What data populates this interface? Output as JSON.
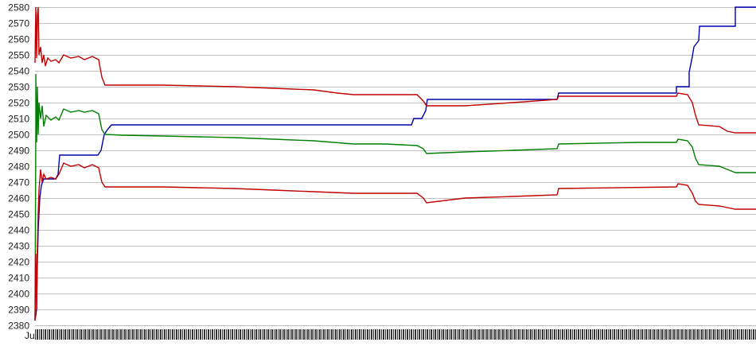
{
  "chart_data": {
    "type": "line",
    "title": "",
    "xlabel": "",
    "ylabel": "",
    "ylim": [
      2380,
      2580
    ],
    "y_ticks": [
      2380,
      2390,
      2400,
      2410,
      2420,
      2430,
      2440,
      2450,
      2460,
      2470,
      2480,
      2490,
      2500,
      2510,
      2520,
      2530,
      2540,
      2550,
      2560,
      2570,
      2580
    ],
    "x_first_tick_label": "Ju",
    "x_tick_labels_note_visible": "dense overlapping date labels (illegible)",
    "grid": "horizontal",
    "legend": "none",
    "series": [
      {
        "color": "#0000b0",
        "points": [
          [
            0,
            2383
          ],
          [
            2,
            2390
          ],
          [
            3,
            2420
          ],
          [
            4,
            2440
          ],
          [
            6,
            2460
          ],
          [
            8,
            2468
          ],
          [
            11,
            2472
          ],
          [
            26,
            2472
          ],
          [
            29,
            2475
          ],
          [
            31,
            2487
          ],
          [
            79,
            2487
          ],
          [
            83,
            2490
          ],
          [
            87,
            2500
          ],
          [
            91,
            2503
          ],
          [
            96,
            2506
          ],
          [
            473,
            2506
          ],
          [
            476,
            2510
          ],
          [
            486,
            2510
          ],
          [
            491,
            2515
          ],
          [
            493,
            2522
          ],
          [
            656,
            2522
          ],
          [
            658,
            2526
          ],
          [
            806,
            2526
          ],
          [
            806,
            2530
          ],
          [
            822,
            2530
          ],
          [
            822,
            2539
          ],
          [
            826,
            2549
          ],
          [
            828,
            2555
          ],
          [
            834,
            2559
          ],
          [
            835,
            2568
          ],
          [
            880,
            2568
          ],
          [
            880,
            2580
          ],
          [
            906,
            2580
          ]
        ]
      },
      {
        "color": "#007f00",
        "points": [
          [
            0,
            2383
          ],
          [
            1,
            2505
          ],
          [
            1,
            2538
          ],
          [
            2,
            2495
          ],
          [
            3,
            2530
          ],
          [
            4,
            2500
          ],
          [
            5,
            2520
          ],
          [
            7,
            2510
          ],
          [
            9,
            2518
          ],
          [
            11,
            2505
          ],
          [
            14,
            2512
          ],
          [
            20,
            2509
          ],
          [
            26,
            2511
          ],
          [
            30,
            2509
          ],
          [
            36,
            2516
          ],
          [
            45,
            2514
          ],
          [
            55,
            2515
          ],
          [
            62,
            2514
          ],
          [
            72,
            2515
          ],
          [
            80,
            2513
          ],
          [
            84,
            2503
          ],
          [
            88,
            2500
          ],
          [
            110,
            2499.5
          ],
          [
            160,
            2499
          ],
          [
            250,
            2498
          ],
          [
            300,
            2497
          ],
          [
            350,
            2496
          ],
          [
            400,
            2494
          ],
          [
            440,
            2494
          ],
          [
            480,
            2493
          ],
          [
            488,
            2491
          ],
          [
            492,
            2488
          ],
          [
            540,
            2489
          ],
          [
            600,
            2490
          ],
          [
            656,
            2491
          ],
          [
            658,
            2494
          ],
          [
            760,
            2495
          ],
          [
            806,
            2495
          ],
          [
            808,
            2497
          ],
          [
            820,
            2496
          ],
          [
            826,
            2492
          ],
          [
            830,
            2485
          ],
          [
            834,
            2481
          ],
          [
            860,
            2480
          ],
          [
            870,
            2478
          ],
          [
            880,
            2476
          ],
          [
            906,
            2476
          ]
        ]
      },
      {
        "color": "#c00000",
        "points": [
          [
            0,
            2545
          ],
          [
            1,
            2580
          ],
          [
            2,
            2548
          ],
          [
            3,
            2575
          ],
          [
            4,
            2580
          ],
          [
            5,
            2550
          ],
          [
            7,
            2555
          ],
          [
            9,
            2545
          ],
          [
            11,
            2550
          ],
          [
            13,
            2543
          ],
          [
            16,
            2548
          ],
          [
            20,
            2546
          ],
          [
            26,
            2547
          ],
          [
            30,
            2545
          ],
          [
            36,
            2550
          ],
          [
            45,
            2548
          ],
          [
            55,
            2549
          ],
          [
            62,
            2547
          ],
          [
            72,
            2549
          ],
          [
            80,
            2547
          ],
          [
            84,
            2536
          ],
          [
            88,
            2531
          ],
          [
            110,
            2531
          ],
          [
            160,
            2531
          ],
          [
            250,
            2530
          ],
          [
            300,
            2529
          ],
          [
            350,
            2528
          ],
          [
            380,
            2526
          ],
          [
            400,
            2525
          ],
          [
            480,
            2525
          ],
          [
            488,
            2521
          ],
          [
            492,
            2518
          ],
          [
            540,
            2518
          ],
          [
            600,
            2520
          ],
          [
            656,
            2522
          ],
          [
            658,
            2524
          ],
          [
            806,
            2524
          ],
          [
            808,
            2526
          ],
          [
            820,
            2525
          ],
          [
            826,
            2520
          ],
          [
            830,
            2512
          ],
          [
            834,
            2506
          ],
          [
            860,
            2505
          ],
          [
            870,
            2502
          ],
          [
            880,
            2501
          ],
          [
            906,
            2501
          ]
        ]
      },
      {
        "color": "#c00000",
        "points": [
          [
            0,
            2383
          ],
          [
            1,
            2425
          ],
          [
            2,
            2390
          ],
          [
            3,
            2430
          ],
          [
            4,
            2450
          ],
          [
            5,
            2465
          ],
          [
            7,
            2478
          ],
          [
            9,
            2470
          ],
          [
            11,
            2475
          ],
          [
            14,
            2472
          ],
          [
            20,
            2473
          ],
          [
            26,
            2472
          ],
          [
            30,
            2475
          ],
          [
            36,
            2482
          ],
          [
            45,
            2480
          ],
          [
            55,
            2481
          ],
          [
            62,
            2479
          ],
          [
            72,
            2481
          ],
          [
            80,
            2479
          ],
          [
            84,
            2470
          ],
          [
            88,
            2467
          ],
          [
            110,
            2467
          ],
          [
            160,
            2467
          ],
          [
            250,
            2466
          ],
          [
            300,
            2465
          ],
          [
            350,
            2464
          ],
          [
            400,
            2463
          ],
          [
            480,
            2463
          ],
          [
            488,
            2460
          ],
          [
            492,
            2457
          ],
          [
            540,
            2460
          ],
          [
            600,
            2461
          ],
          [
            656,
            2462
          ],
          [
            658,
            2466
          ],
          [
            806,
            2467
          ],
          [
            808,
            2469
          ],
          [
            820,
            2468
          ],
          [
            826,
            2463
          ],
          [
            830,
            2458
          ],
          [
            834,
            2456
          ],
          [
            860,
            2455
          ],
          [
            870,
            2454
          ],
          [
            880,
            2453
          ],
          [
            906,
            2453
          ]
        ]
      }
    ]
  }
}
